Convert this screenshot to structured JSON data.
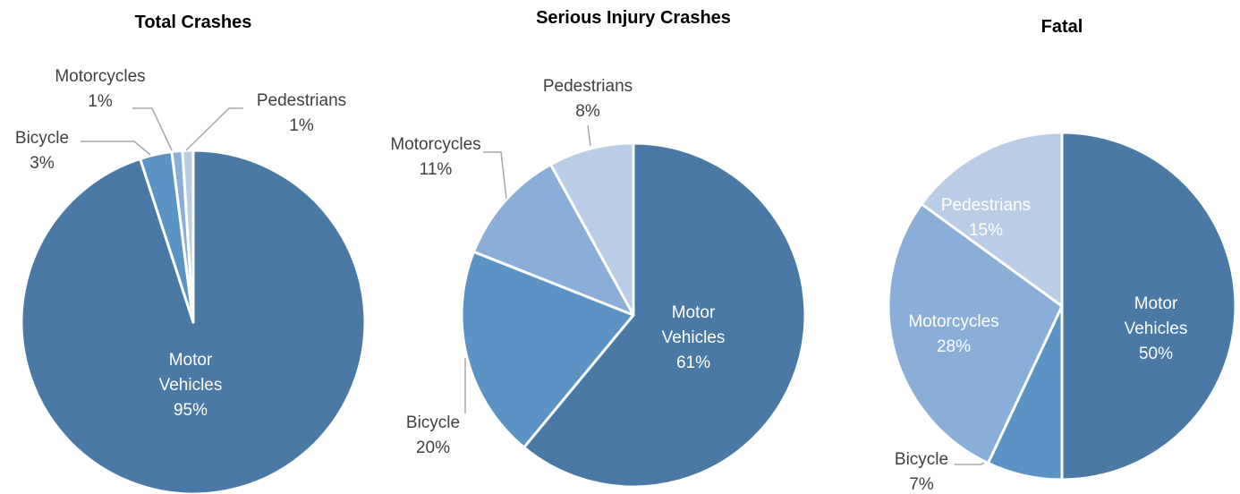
{
  "chart_data": [
    {
      "type": "pie",
      "title": "Total Crashes",
      "categories": [
        "Motor Vehicles",
        "Bicycle",
        "Motorcycles",
        "Pedestrians"
      ],
      "values": [
        95,
        3,
        1,
        1
      ],
      "value_labels": [
        "95%",
        "3%",
        "1%",
        "1%"
      ],
      "colors": [
        "#4a79a5",
        "#5a93c4",
        "#8aaed8",
        "#b9cde6"
      ]
    },
    {
      "type": "pie",
      "title": "Serious Injury Crashes",
      "categories": [
        "Motor Vehicles",
        "Bicycle",
        "Motorcycles",
        "Pedestrians"
      ],
      "values": [
        61,
        20,
        11,
        8
      ],
      "value_labels": [
        "61%",
        "20%",
        "11%",
        "8%"
      ],
      "colors": [
        "#4a79a5",
        "#5a93c4",
        "#8aaed8",
        "#b9cde6"
      ]
    },
    {
      "type": "pie",
      "title": "Fatal",
      "categories": [
        "Motor Vehicles",
        "Bicycle",
        "Motorcycles",
        "Pedestrians"
      ],
      "values": [
        50,
        7,
        28,
        15
      ],
      "value_labels": [
        "50%",
        "7%",
        "28%",
        "15%"
      ],
      "colors": [
        "#4a79a5",
        "#5a93c4",
        "#8aaed8",
        "#b9cde6"
      ]
    }
  ]
}
